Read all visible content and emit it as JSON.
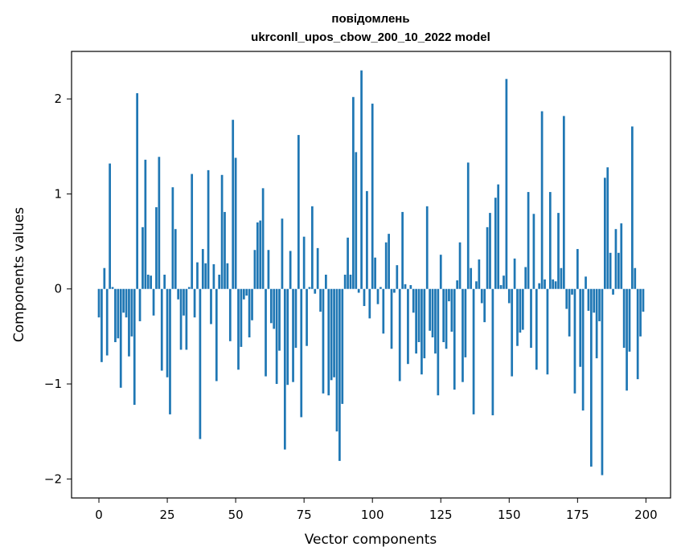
{
  "chart_data": {
    "type": "bar",
    "title": "повідомлень",
    "subtitle": "ukrconll_upos_cbow_200_10_2022 model",
    "xlabel": "Vector components",
    "ylabel": "Components values",
    "xlim": [
      -10,
      209
    ],
    "ylim": [
      -2.2,
      2.5
    ],
    "grid": false,
    "color": "#1f77b4",
    "x_ticks": [
      {
        "value": 0,
        "label": "0"
      },
      {
        "value": 25,
        "label": "25"
      },
      {
        "value": 50,
        "label": "50"
      },
      {
        "value": 75,
        "label": "75"
      },
      {
        "value": 100,
        "label": "100"
      },
      {
        "value": 125,
        "label": "125"
      },
      {
        "value": 150,
        "label": "150"
      },
      {
        "value": 175,
        "label": "175"
      },
      {
        "value": 200,
        "label": "200"
      }
    ],
    "y_ticks": [
      {
        "value": -2,
        "label": "−2"
      },
      {
        "value": -1,
        "label": "−1"
      },
      {
        "value": 0,
        "label": "0"
      },
      {
        "value": 1,
        "label": "1"
      },
      {
        "value": 2,
        "label": "2"
      }
    ],
    "values": [
      -0.3,
      -0.77,
      0.22,
      -0.7,
      1.32,
      0.02,
      -0.56,
      -0.52,
      -1.04,
      -0.25,
      -0.3,
      -0.71,
      -0.5,
      -1.22,
      2.06,
      -0.34,
      0.65,
      1.36,
      0.15,
      0.14,
      -0.28,
      0.86,
      1.39,
      -0.86,
      0.15,
      -0.93,
      -1.32,
      1.07,
      0.63,
      -0.11,
      -0.64,
      -0.28,
      -0.64,
      0.02,
      1.21,
      -0.3,
      0.28,
      -1.58,
      0.42,
      0.27,
      1.25,
      -0.37,
      0.26,
      -0.97,
      0.15,
      1.2,
      0.81,
      0.27,
      -0.55,
      1.78,
      1.38,
      -0.85,
      -0.61,
      -0.11,
      -0.07,
      -0.51,
      -0.33,
      0.41,
      0.7,
      0.72,
      1.06,
      -0.92,
      0.41,
      -0.36,
      -0.42,
      -1.0,
      -0.65,
      0.74,
      -1.69,
      -1.01,
      0.4,
      -0.98,
      -0.62,
      1.62,
      -1.35,
      0.55,
      -0.6,
      0.02,
      0.87,
      -0.05,
      0.43,
      -0.24,
      -1.1,
      0.15,
      -1.12,
      -0.96,
      -0.93,
      -1.5,
      -1.81,
      -1.21,
      0.15,
      0.54,
      0.15,
      2.02,
      1.44,
      -0.04,
      2.3,
      -0.18,
      1.03,
      -0.31,
      1.95,
      0.33,
      -0.16,
      0.02,
      -0.47,
      0.49,
      0.58,
      -0.63,
      -0.04,
      0.25,
      -0.97,
      0.81,
      0.05,
      -0.79,
      0.04,
      -0.25,
      -0.68,
      -0.56,
      -0.9,
      -0.73,
      0.87,
      -0.44,
      -0.51,
      -0.68,
      -1.12,
      0.36,
      -0.56,
      -0.63,
      -0.13,
      -0.45,
      -1.06,
      0.09,
      0.49,
      -0.98,
      -0.72,
      1.33,
      0.22,
      -1.32,
      0.08,
      0.31,
      -0.15,
      -0.35,
      0.65,
      0.8,
      -1.33,
      0.96,
      1.1,
      0.04,
      0.14,
      2.21,
      -0.15,
      -0.92,
      0.32,
      -0.6,
      -0.46,
      -0.43,
      0.23,
      1.02,
      -0.62,
      0.79,
      -0.85,
      0.06,
      1.87,
      0.1,
      -0.9,
      1.02,
      0.1,
      0.08,
      0.8,
      0.22,
      1.82,
      -0.21,
      -0.5,
      -0.06,
      -1.1,
      0.42,
      -0.82,
      -1.28,
      0.13,
      -0.23,
      -1.87,
      -0.25,
      -0.73,
      -0.34,
      -1.96,
      1.17,
      1.28,
      0.38,
      -0.06,
      0.63,
      0.38,
      0.69,
      -0.62,
      -1.07,
      -0.66,
      1.71,
      0.22,
      -0.95,
      -0.5,
      -0.24
    ]
  }
}
